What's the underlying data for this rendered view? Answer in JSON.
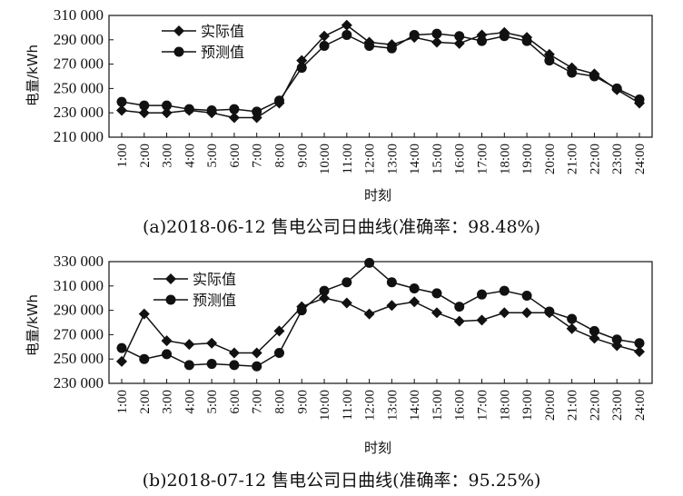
{
  "chart_data": [
    {
      "type": "line",
      "caption": "(a)2018-06-12 售电公司日曲线(准确率：98.48%)",
      "xlabel": "时刻",
      "ylabel": "电量/kWh",
      "categories": [
        "1:00",
        "2:00",
        "3:00",
        "4:00",
        "5:00",
        "6:00",
        "7:00",
        "8:00",
        "9:00",
        "10:00",
        "11:00",
        "12:00",
        "13:00",
        "14:00",
        "15:00",
        "16:00",
        "17:00",
        "18:00",
        "19:00",
        "20:00",
        "21:00",
        "22:00",
        "23:00",
        "24:00"
      ],
      "yticks": [
        "210 000",
        "230 000",
        "250 000",
        "270 000",
        "290 000",
        "310 000"
      ],
      "ylim": [
        210000,
        310000
      ],
      "series": [
        {
          "name": "实际值",
          "marker": "diamond",
          "values": [
            232000,
            230000,
            230000,
            232000,
            230000,
            226000,
            226000,
            238000,
            273000,
            293000,
            302000,
            288000,
            286000,
            292000,
            288000,
            287000,
            294000,
            296000,
            292000,
            278000,
            267000,
            262000,
            249000,
            238000
          ]
        },
        {
          "name": "预测值",
          "marker": "circle",
          "values": [
            239000,
            236000,
            236000,
            233000,
            232000,
            233000,
            231000,
            240000,
            267000,
            285000,
            294000,
            285000,
            283000,
            294000,
            295000,
            293000,
            289000,
            293000,
            289000,
            273000,
            263000,
            260000,
            250000,
            241000
          ]
        }
      ],
      "legend_position": "top-left",
      "grid": false
    },
    {
      "type": "line",
      "caption": "(b)2018-07-12 售电公司日曲线(准确率：95.25%)",
      "xlabel": "时刻",
      "ylabel": "电量/kWh",
      "categories": [
        "1:00",
        "2:00",
        "3:00",
        "4:00",
        "5:00",
        "6:00",
        "7:00",
        "8:00",
        "9:00",
        "10:00",
        "11:00",
        "12:00",
        "13:00",
        "14:00",
        "15:00",
        "16:00",
        "17:00",
        "18:00",
        "19:00",
        "20:00",
        "21:00",
        "22:00",
        "23:00",
        "24:00"
      ],
      "yticks": [
        "230 000",
        "250 000",
        "270 000",
        "290 000",
        "310 000",
        "330 000"
      ],
      "ylim": [
        230000,
        330000
      ],
      "series": [
        {
          "name": "实际值",
          "marker": "diamond",
          "values": [
            248000,
            287000,
            265000,
            262000,
            263000,
            255000,
            255000,
            273000,
            293000,
            300000,
            296000,
            287000,
            294000,
            297000,
            288000,
            281000,
            282000,
            288000,
            288000,
            288000,
            275000,
            267000,
            261000,
            256000
          ]
        },
        {
          "name": "预测值",
          "marker": "circle",
          "values": [
            259000,
            250000,
            254000,
            245000,
            246000,
            245000,
            244000,
            255000,
            290000,
            306000,
            313000,
            329000,
            313000,
            308000,
            304000,
            293000,
            303000,
            306000,
            302000,
            289000,
            283000,
            273000,
            266000,
            263000
          ]
        }
      ],
      "legend_position": "top-left",
      "grid": false
    }
  ]
}
